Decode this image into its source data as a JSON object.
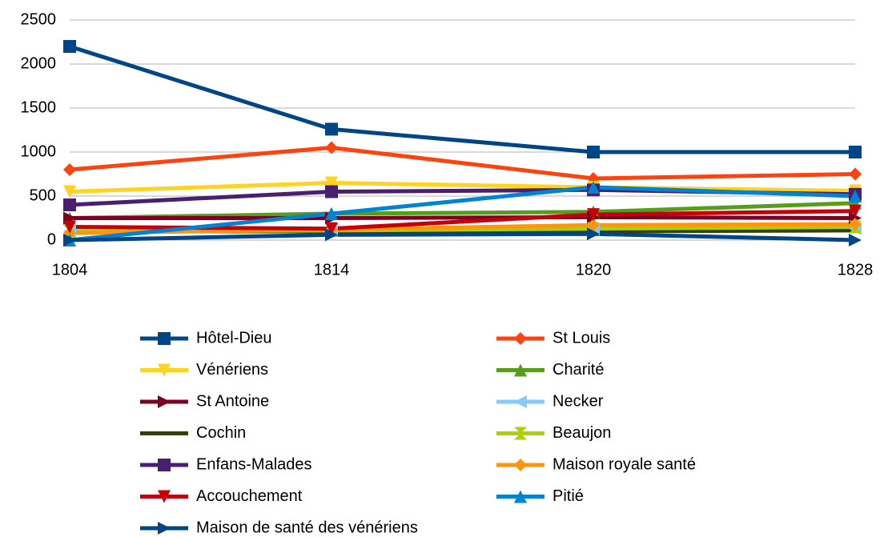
{
  "chart_data": {
    "type": "line",
    "categories": [
      "1804",
      "1814",
      "1820",
      "1828"
    ],
    "ylim": [
      0,
      2500
    ],
    "yticks": [
      0,
      500,
      1000,
      1500,
      2000,
      2500
    ],
    "grid": true,
    "series": [
      {
        "name": "Hôtel-Dieu",
        "color": "#004586",
        "marker": "square",
        "values": [
          2200,
          1260,
          1000,
          1000
        ]
      },
      {
        "name": "St Louis",
        "color": "#ff420e",
        "marker": "diamond",
        "values": [
          800,
          1050,
          700,
          750
        ]
      },
      {
        "name": "Vénériens",
        "color": "#ffd320",
        "marker": "down",
        "values": [
          550,
          650,
          600,
          560
        ]
      },
      {
        "name": "Charité",
        "color": "#579d1c",
        "marker": "up",
        "values": [
          250,
          300,
          320,
          420
        ]
      },
      {
        "name": "St Antoine",
        "color": "#7e0021",
        "marker": "right",
        "values": [
          250,
          250,
          260,
          250
        ]
      },
      {
        "name": "Necker",
        "color": "#83caff",
        "marker": "left",
        "values": [
          100,
          120,
          120,
          130
        ]
      },
      {
        "name": "Cochin",
        "color": "#314004",
        "marker": "bowtie",
        "values": [
          100,
          100,
          100,
          110
        ]
      },
      {
        "name": "Beaujon",
        "color": "#aecf00",
        "marker": "hourglass",
        "values": [
          100,
          110,
          130,
          150
        ]
      },
      {
        "name": "Enfans-Malades",
        "color": "#4b1f6f",
        "marker": "square",
        "values": [
          400,
          550,
          570,
          520
        ]
      },
      {
        "name": "Maison royale santé",
        "color": "#ff950e",
        "marker": "diamond",
        "values": [
          80,
          120,
          170,
          180
        ]
      },
      {
        "name": "Accouchement",
        "color": "#c5000b",
        "marker": "down",
        "values": [
          150,
          130,
          290,
          330
        ]
      },
      {
        "name": "Pitié",
        "color": "#0084d1",
        "marker": "up",
        "values": [
          0,
          300,
          600,
          500
        ]
      },
      {
        "name": "Maison de santé des vénériens",
        "color": "#004586",
        "marker": "right",
        "values": [
          0,
          60,
          70,
          0
        ]
      }
    ]
  }
}
